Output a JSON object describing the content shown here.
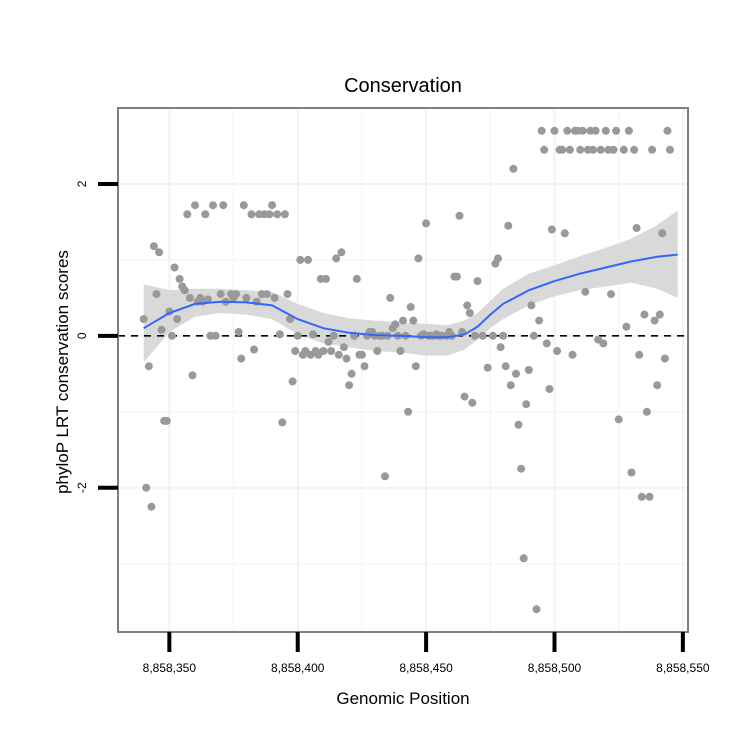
{
  "chart_data": {
    "type": "scatter",
    "title": "Conservation",
    "xlabel": "Genomic Position",
    "ylabel": "phyloP LRT conservation scores",
    "xlim": [
      8858330,
      8858552
    ],
    "ylim": [
      -3.9,
      3.0
    ],
    "grid": true,
    "x_ticks": [
      8858350,
      8858400,
      8858450,
      8858500,
      8858550
    ],
    "x_tick_labels": [
      "8,858,350",
      "8,858,400",
      "8,858,450",
      "8,858,500",
      "8,858,550"
    ],
    "y_ticks": [
      -2,
      0,
      2
    ],
    "y_tick_labels": [
      "-2",
      "0",
      "2"
    ],
    "reference_line": {
      "y": 0,
      "style": "dashed",
      "color": "#000000"
    },
    "colors": {
      "points": "#999999",
      "smooth": "#3366ff",
      "ribbon": "#d9d9d9",
      "panel_border": "#7f7f7f",
      "grid": "#f2f2f2"
    },
    "series": [
      {
        "name": "scores",
        "points": [
          [
            8858340,
            0.22
          ],
          [
            8858341,
            -2.0
          ],
          [
            8858342,
            -0.4
          ],
          [
            8858343,
            -2.25
          ],
          [
            8858344,
            1.18
          ],
          [
            8858345,
            0.55
          ],
          [
            8858346,
            1.1
          ],
          [
            8858347,
            0.08
          ],
          [
            8858348,
            -1.12
          ],
          [
            8858349,
            -1.12
          ],
          [
            8858350,
            0.32
          ],
          [
            8858351,
            0.0
          ],
          [
            8858352,
            0.9
          ],
          [
            8858353,
            0.22
          ],
          [
            8858354,
            0.75
          ],
          [
            8858355,
            0.65
          ],
          [
            8858356,
            0.6
          ],
          [
            8858357,
            1.6
          ],
          [
            8858358,
            0.5
          ],
          [
            8858359,
            -0.52
          ],
          [
            8858360,
            1.72
          ],
          [
            8858361,
            0.45
          ],
          [
            8858362,
            0.5
          ],
          [
            8858363,
            0.45
          ],
          [
            8858364,
            1.6
          ],
          [
            8858365,
            0.48
          ],
          [
            8858366,
            0.0
          ],
          [
            8858367,
            1.72
          ],
          [
            8858368,
            0.0
          ],
          [
            8858370,
            0.55
          ],
          [
            8858371,
            1.72
          ],
          [
            8858372,
            0.45
          ],
          [
            8858374,
            0.55
          ],
          [
            8858375,
            0.5
          ],
          [
            8858376,
            0.55
          ],
          [
            8858377,
            0.05
          ],
          [
            8858378,
            -0.3
          ],
          [
            8858379,
            1.72
          ],
          [
            8858380,
            0.5
          ],
          [
            8858382,
            1.6
          ],
          [
            8858383,
            -0.18
          ],
          [
            8858384,
            0.45
          ],
          [
            8858385,
            1.6
          ],
          [
            8858386,
            0.55
          ],
          [
            8858387,
            1.6
          ],
          [
            8858388,
            0.55
          ],
          [
            8858389,
            1.6
          ],
          [
            8858390,
            1.72
          ],
          [
            8858391,
            0.5
          ],
          [
            8858392,
            1.6
          ],
          [
            8858393,
            0.02
          ],
          [
            8858394,
            -1.14
          ],
          [
            8858395,
            1.6
          ],
          [
            8858396,
            0.55
          ],
          [
            8858397,
            0.22
          ],
          [
            8858398,
            -0.6
          ],
          [
            8858399,
            -0.2
          ],
          [
            8858400,
            0.0
          ],
          [
            8858401,
            1.0
          ],
          [
            8858402,
            -0.25
          ],
          [
            8858403,
            -0.2
          ],
          [
            8858404,
            1.0
          ],
          [
            8858405,
            -0.25
          ],
          [
            8858406,
            0.02
          ],
          [
            8858407,
            -0.2
          ],
          [
            8858408,
            -0.25
          ],
          [
            8858409,
            0.75
          ],
          [
            8858410,
            -0.2
          ],
          [
            8858411,
            0.75
          ],
          [
            8858412,
            -0.08
          ],
          [
            8858413,
            -0.2
          ],
          [
            8858414,
            0.0
          ],
          [
            8858415,
            1.02
          ],
          [
            8858416,
            -0.25
          ],
          [
            8858417,
            1.1
          ],
          [
            8858418,
            -0.15
          ],
          [
            8858419,
            -0.3
          ],
          [
            8858420,
            -0.65
          ],
          [
            8858421,
            -0.5
          ],
          [
            8858422,
            0.0
          ],
          [
            8858423,
            0.75
          ],
          [
            8858424,
            -0.25
          ],
          [
            8858425,
            -0.25
          ],
          [
            8858426,
            -0.4
          ],
          [
            8858427,
            0.0
          ],
          [
            8858428,
            0.05
          ],
          [
            8858429,
            0.05
          ],
          [
            8858430,
            0.0
          ],
          [
            8858431,
            -0.2
          ],
          [
            8858432,
            0.0
          ],
          [
            8858433,
            0.0
          ],
          [
            8858434,
            -1.85
          ],
          [
            8858435,
            0.0
          ],
          [
            8858436,
            0.5
          ],
          [
            8858437,
            0.1
          ],
          [
            8858438,
            0.15
          ],
          [
            8858439,
            0.0
          ],
          [
            8858440,
            -0.2
          ],
          [
            8858441,
            0.2
          ],
          [
            8858442,
            0.0
          ],
          [
            8858443,
            -1.0
          ],
          [
            8858444,
            0.38
          ],
          [
            8858445,
            0.2
          ],
          [
            8858446,
            -0.4
          ],
          [
            8858447,
            1.02
          ],
          [
            8858448,
            0.0
          ],
          [
            8858449,
            0.02
          ],
          [
            8858450,
            1.48
          ],
          [
            8858451,
            0.0
          ],
          [
            8858452,
            0.0
          ],
          [
            8858453,
            0.0
          ],
          [
            8858454,
            0.02
          ],
          [
            8858455,
            0.0
          ],
          [
            8858456,
            0.0
          ],
          [
            8858458,
            0.0
          ],
          [
            8858459,
            0.05
          ],
          [
            8858460,
            0.0
          ],
          [
            8858461,
            0.78
          ],
          [
            8858462,
            0.78
          ],
          [
            8858463,
            1.58
          ],
          [
            8858464,
            0.05
          ],
          [
            8858465,
            -0.8
          ],
          [
            8858466,
            0.4
          ],
          [
            8858467,
            0.3
          ],
          [
            8858468,
            -0.88
          ],
          [
            8858469,
            0.0
          ],
          [
            8858470,
            0.72
          ],
          [
            8858472,
            0.0
          ],
          [
            8858474,
            -0.42
          ],
          [
            8858476,
            0.0
          ],
          [
            8858477,
            0.95
          ],
          [
            8858478,
            1.02
          ],
          [
            8858479,
            -0.15
          ],
          [
            8858480,
            0.0
          ],
          [
            8858481,
            -0.4
          ],
          [
            8858482,
            1.45
          ],
          [
            8858483,
            -0.65
          ],
          [
            8858484,
            2.2
          ],
          [
            8858485,
            -0.5
          ],
          [
            8858486,
            -1.17
          ],
          [
            8858487,
            -1.75
          ],
          [
            8858488,
            -2.93
          ],
          [
            8858489,
            -0.9
          ],
          [
            8858490,
            -0.45
          ],
          [
            8858491,
            0.4
          ],
          [
            8858492,
            0.0
          ],
          [
            8858493,
            -3.6
          ],
          [
            8858494,
            0.2
          ],
          [
            8858495,
            2.7
          ],
          [
            8858496,
            2.45
          ],
          [
            8858497,
            -0.1
          ],
          [
            8858498,
            -0.7
          ],
          [
            8858499,
            1.4
          ],
          [
            8858500,
            2.7
          ],
          [
            8858501,
            -0.2
          ],
          [
            8858502,
            2.45
          ],
          [
            8858503,
            2.45
          ],
          [
            8858504,
            1.35
          ],
          [
            8858505,
            2.7
          ],
          [
            8858506,
            2.45
          ],
          [
            8858507,
            -0.25
          ],
          [
            8858508,
            2.7
          ],
          [
            8858509,
            2.7
          ],
          [
            8858510,
            2.45
          ],
          [
            8858511,
            2.7
          ],
          [
            8858512,
            0.58
          ],
          [
            8858513,
            2.45
          ],
          [
            8858514,
            2.7
          ],
          [
            8858515,
            2.45
          ],
          [
            8858516,
            2.7
          ],
          [
            8858517,
            -0.05
          ],
          [
            8858518,
            2.45
          ],
          [
            8858519,
            -0.1
          ],
          [
            8858520,
            2.7
          ],
          [
            8858521,
            2.45
          ],
          [
            8858522,
            0.55
          ],
          [
            8858523,
            2.45
          ],
          [
            8858524,
            2.7
          ],
          [
            8858525,
            -1.1
          ],
          [
            8858527,
            2.45
          ],
          [
            8858528,
            0.12
          ],
          [
            8858529,
            2.7
          ],
          [
            8858530,
            -1.8
          ],
          [
            8858531,
            2.45
          ],
          [
            8858532,
            1.42
          ],
          [
            8858533,
            -0.25
          ],
          [
            8858534,
            -2.12
          ],
          [
            8858535,
            0.28
          ],
          [
            8858536,
            -1.0
          ],
          [
            8858537,
            -2.12
          ],
          [
            8858538,
            2.45
          ],
          [
            8858539,
            0.2
          ],
          [
            8858540,
            -0.65
          ],
          [
            8858541,
            0.28
          ],
          [
            8858542,
            1.35
          ],
          [
            8858543,
            -0.3
          ],
          [
            8858544,
            2.7
          ],
          [
            8858545,
            2.45
          ]
        ]
      }
    ],
    "smooth": {
      "method": "loess",
      "x": [
        8858340,
        8858350,
        8858360,
        8858370,
        8858380,
        8858390,
        8858400,
        8858410,
        8858420,
        8858430,
        8858440,
        8858450,
        8858458,
        8858465,
        8858470,
        8858475,
        8858480,
        8858490,
        8858500,
        8858510,
        8858520,
        8858530,
        8858540,
        8858548
      ],
      "y": [
        0.1,
        0.3,
        0.42,
        0.45,
        0.44,
        0.4,
        0.22,
        0.1,
        0.04,
        0.01,
        0.0,
        -0.02,
        -0.02,
        0.02,
        0.12,
        0.28,
        0.42,
        0.6,
        0.72,
        0.82,
        0.9,
        0.98,
        1.04,
        1.07
      ],
      "lower": [
        -0.35,
        0.05,
        0.25,
        0.3,
        0.28,
        0.22,
        0.02,
        -0.1,
        -0.15,
        -0.2,
        -0.22,
        -0.26,
        -0.26,
        -0.18,
        -0.05,
        0.1,
        0.22,
        0.4,
        0.52,
        0.6,
        0.65,
        0.7,
        0.62,
        0.5
      ],
      "upper": [
        0.68,
        0.6,
        0.62,
        0.62,
        0.6,
        0.58,
        0.42,
        0.3,
        0.23,
        0.2,
        0.18,
        0.16,
        0.14,
        0.2,
        0.3,
        0.46,
        0.62,
        0.82,
        0.93,
        1.05,
        1.16,
        1.28,
        1.46,
        1.65
      ]
    }
  }
}
